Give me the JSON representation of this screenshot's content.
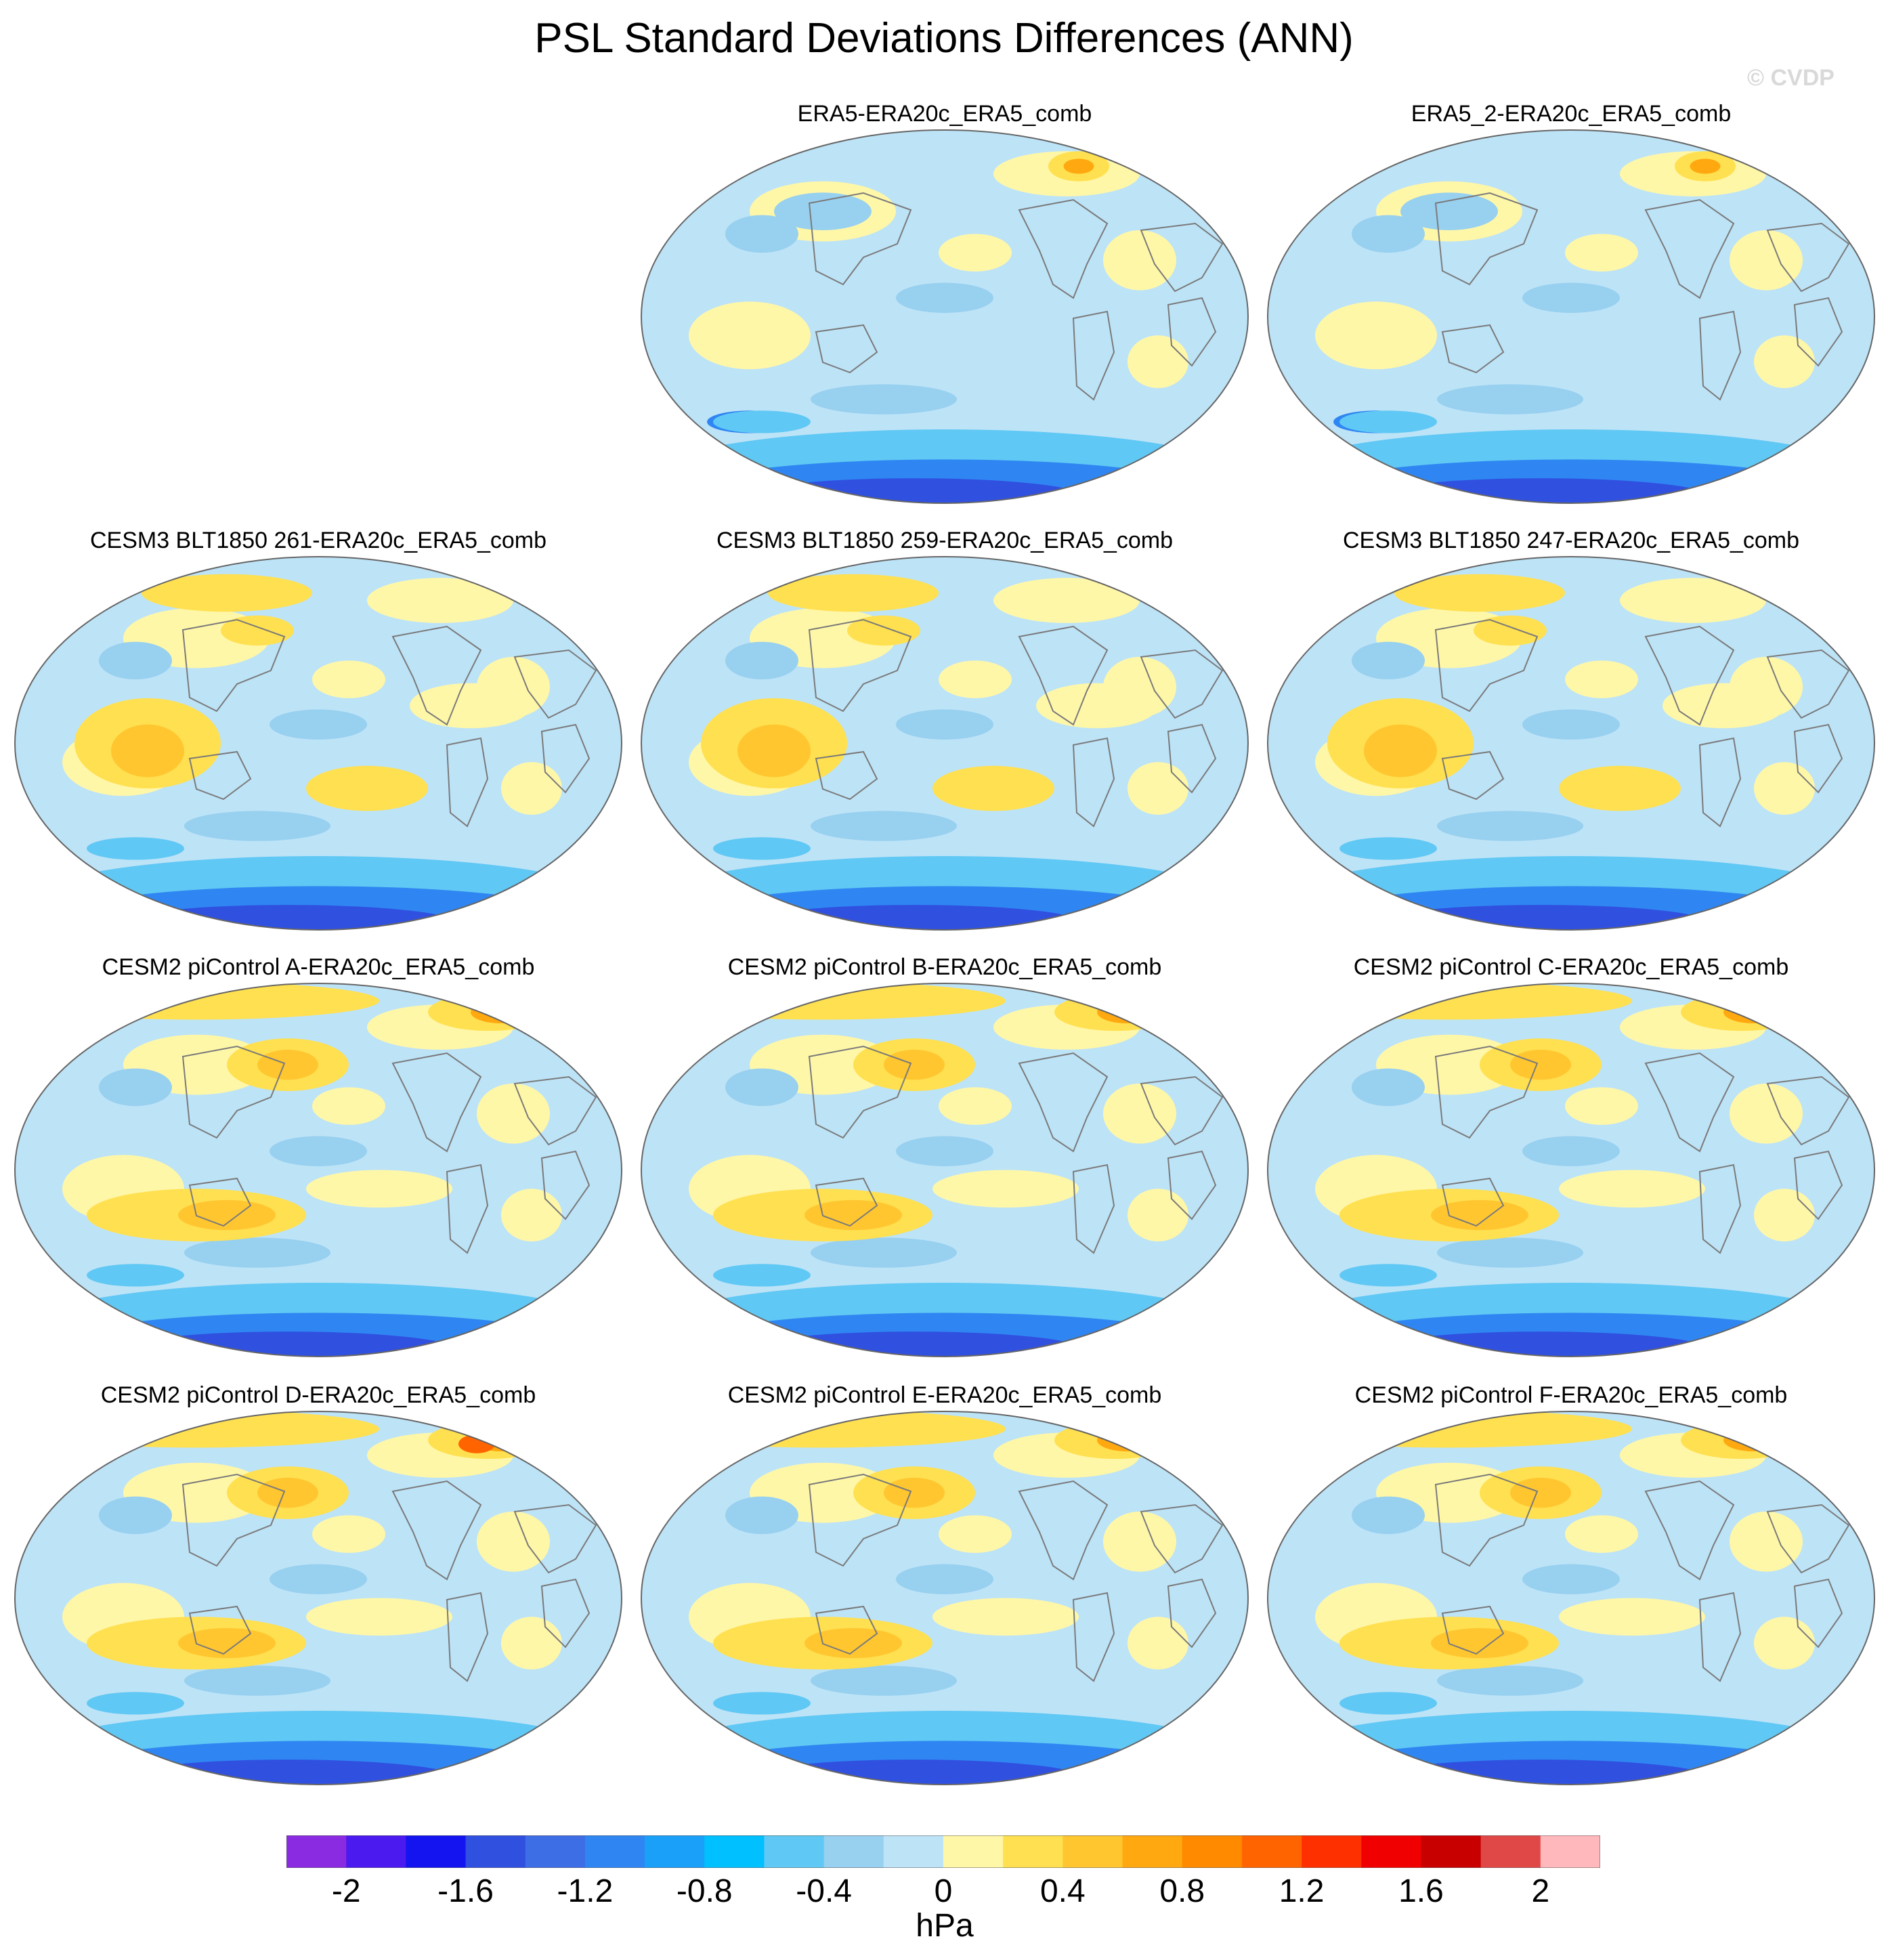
{
  "figure": {
    "title": "PSL Standard Deviations Differences (ANN)",
    "credit": "© CVDP"
  },
  "panels": [
    {
      "label": "ERA5-ERA20c_ERA5_comb",
      "row": 0,
      "col": 1
    },
    {
      "label": "ERA5_2-ERA20c_ERA5_comb",
      "row": 0,
      "col": 2
    },
    {
      "label": "CESM3 BLT1850 261-ERA20c_ERA5_comb",
      "row": 1,
      "col": 0
    },
    {
      "label": "CESM3 BLT1850 259-ERA20c_ERA5_comb",
      "row": 1,
      "col": 1
    },
    {
      "label": "CESM3 BLT1850 247-ERA20c_ERA5_comb",
      "row": 1,
      "col": 2
    },
    {
      "label": "CESM2 piControl A-ERA20c_ERA5_comb",
      "row": 2,
      "col": 0
    },
    {
      "label": "CESM2 piControl B-ERA20c_ERA5_comb",
      "row": 2,
      "col": 1
    },
    {
      "label": "CESM2 piControl C-ERA20c_ERA5_comb",
      "row": 2,
      "col": 2
    },
    {
      "label": "CESM2 piControl D-ERA20c_ERA5_comb",
      "row": 3,
      "col": 0
    },
    {
      "label": "CESM2 piControl E-ERA20c_ERA5_comb",
      "row": 3,
      "col": 1
    },
    {
      "label": "CESM2 piControl F-ERA20c_ERA5_comb",
      "row": 3,
      "col": 2
    }
  ],
  "colorbar": {
    "units": "hPa",
    "tick_labels": [
      "-2",
      "-1.6",
      "-1.2",
      "-0.8",
      "-0.4",
      "0",
      "0.4",
      "0.8",
      "1.2",
      "1.6",
      "2"
    ],
    "levels": [
      -2.2,
      -2.0,
      -1.8,
      -1.6,
      -1.4,
      -1.2,
      -1.0,
      -0.8,
      -0.6,
      -0.4,
      -0.2,
      0,
      0.2,
      0.4,
      0.6,
      0.8,
      1.0,
      1.2,
      1.4,
      1.6,
      1.8,
      2.0,
      2.2
    ],
    "colors": [
      "#8a2be2",
      "#4b1aef",
      "#1414f0",
      "#3050e0",
      "#3e6ee6",
      "#2f86f2",
      "#1aa0f8",
      "#00c0ff",
      "#60c8f4",
      "#98d0ef",
      "#bde3f7",
      "#fff7a8",
      "#ffe050",
      "#ffc630",
      "#ffa810",
      "#ff8a00",
      "#ff6400",
      "#ff3000",
      "#f00000",
      "#c80000",
      "#e04848",
      "#ffb8bc"
    ]
  }
}
